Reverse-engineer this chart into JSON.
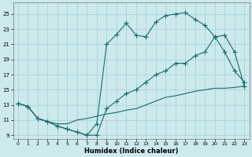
{
  "xlabel": "Humidex (Indice chaleur)",
  "bg_color": "#cce9ec",
  "grid_color": "#aad4d8",
  "line_color": "#1a6b6b",
  "xlim": [
    -0.5,
    23.5
  ],
  "ylim": [
    8.5,
    26.5
  ],
  "xticks": [
    0,
    1,
    2,
    3,
    4,
    5,
    6,
    7,
    8,
    9,
    10,
    11,
    12,
    13,
    14,
    15,
    16,
    17,
    18,
    19,
    20,
    21,
    22,
    23
  ],
  "yticks": [
    9,
    11,
    13,
    15,
    17,
    19,
    21,
    23,
    25
  ],
  "line1_x": [
    0,
    1,
    2,
    3,
    4,
    5,
    6,
    7,
    8,
    9,
    10,
    11,
    12,
    13,
    14,
    15,
    16,
    17,
    18,
    19,
    20,
    21,
    22,
    23
  ],
  "line1_y": [
    13.2,
    12.8,
    11.2,
    10.8,
    10.2,
    9.8,
    9.4,
    9.0,
    10.5,
    21.0,
    22.3,
    23.8,
    22.2,
    22.0,
    24.0,
    24.8,
    25.0,
    25.2,
    24.3,
    23.5,
    22.0,
    20.0,
    17.5,
    16.0
  ],
  "line2_x": [
    0,
    1,
    2,
    3,
    4,
    5,
    6,
    7,
    8,
    9,
    10,
    11,
    12,
    13,
    14,
    15,
    16,
    17,
    18,
    19,
    20,
    21,
    22,
    23
  ],
  "line2_y": [
    13.2,
    12.8,
    11.2,
    10.8,
    10.2,
    9.8,
    9.4,
    9.0,
    9.0,
    12.5,
    13.5,
    14.5,
    15.0,
    16.0,
    17.0,
    17.5,
    18.5,
    18.5,
    19.5,
    20.0,
    22.0,
    22.2,
    20.0,
    15.5
  ],
  "line3_x": [
    0,
    1,
    2,
    3,
    4,
    5,
    6,
    7,
    8,
    9,
    10,
    11,
    12,
    13,
    14,
    15,
    16,
    17,
    18,
    19,
    20,
    21,
    22,
    23
  ],
  "line3_y": [
    13.2,
    12.8,
    11.2,
    10.8,
    10.5,
    10.5,
    11.0,
    11.2,
    11.5,
    11.8,
    12.0,
    12.3,
    12.5,
    13.0,
    13.5,
    14.0,
    14.2,
    14.5,
    14.8,
    15.0,
    15.2,
    15.2,
    15.3,
    15.5
  ]
}
